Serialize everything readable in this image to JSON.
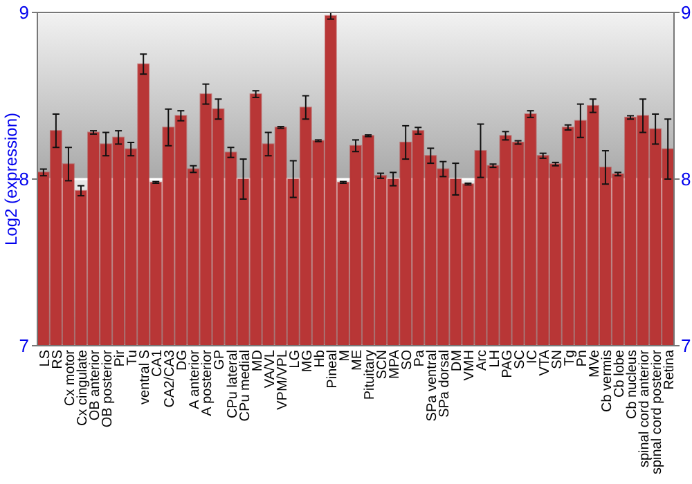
{
  "chart_data": {
    "type": "bar",
    "ylabel": "Log2 (expression)",
    "categories": [
      "LS",
      "RS",
      "Cx motor",
      "Cx cingulate",
      "OB anterior",
      "OB posterior",
      "Pir",
      "Tu",
      "ventral S",
      "CA1",
      "CA2/CA3",
      "DG",
      "A anterior",
      "A posterior",
      "GP",
      "CPu lateral",
      "CPu medial",
      "MD",
      "VA/VL",
      "VPM/VPL",
      "LG",
      "MG",
      "Hb",
      "Pineal",
      "M",
      "ME",
      "Pituitary",
      "SCN",
      "MPA",
      "SO",
      "Pa",
      "SPa ventral",
      "SPa dorsal",
      "DM",
      "VMH",
      "Arc",
      "LH",
      "PAG",
      "SC",
      "IC",
      "VTA",
      "SN",
      "Tg",
      "Pn",
      "MVe",
      "Cb vermis",
      "Cb lobe",
      "Cb nucleus",
      "spinal cord anterior",
      "spinal cord posterior",
      "Retina"
    ],
    "values": [
      8.04,
      8.29,
      8.09,
      7.93,
      8.28,
      8.21,
      8.25,
      8.18,
      8.69,
      7.98,
      8.31,
      8.38,
      8.06,
      8.51,
      8.42,
      8.16,
      8.0,
      8.51,
      8.21,
      8.31,
      8.0,
      8.43,
      8.23,
      8.98,
      7.98,
      8.2,
      8.26,
      8.02,
      8.0,
      8.22,
      8.29,
      8.14,
      8.06,
      8.0,
      7.97,
      8.17,
      8.08,
      8.26,
      8.22,
      8.39,
      8.14,
      8.09,
      8.31,
      8.35,
      8.44,
      8.07,
      8.03,
      8.37,
      8.38,
      8.3,
      8.18
    ],
    "errors": [
      0.02,
      0.1,
      0.1,
      0.03,
      0.01,
      0.07,
      0.04,
      0.04,
      0.06,
      0.005,
      0.11,
      0.03,
      0.02,
      0.06,
      0.06,
      0.03,
      0.12,
      0.02,
      0.07,
      0.005,
      0.11,
      0.07,
      0.005,
      0.02,
      0.005,
      0.035,
      0.005,
      0.015,
      0.04,
      0.1,
      0.02,
      0.045,
      0.045,
      0.095,
      0.005,
      0.16,
      0.01,
      0.025,
      0.01,
      0.02,
      0.015,
      0.01,
      0.015,
      0.1,
      0.04,
      0.1,
      0.01,
      0.01,
      0.1,
      0.09,
      0.18
    ],
    "color": "#b83636",
    "ylim": [
      7,
      9
    ],
    "yticks": [
      7,
      8,
      9
    ],
    "y2lim": [
      7,
      9
    ],
    "y2ticks": [
      7,
      8,
      9
    ],
    "grid": "y"
  }
}
